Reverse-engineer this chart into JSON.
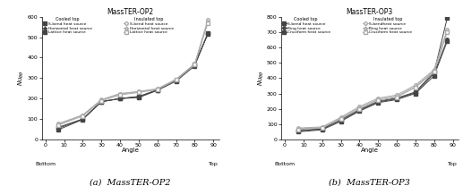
{
  "op2": {
    "title": "MassTER-OP2",
    "xlabel": "Angle",
    "ylabel": "$Nu_{\\theta\\theta}$",
    "xlim": [
      -2,
      93
    ],
    "ylim": [
      0,
      600
    ],
    "yticks": [
      0,
      100,
      200,
      300,
      400,
      500,
      600
    ],
    "xticks": [
      0,
      10,
      20,
      30,
      40,
      50,
      60,
      70,
      80,
      90
    ],
    "angles": [
      7,
      20,
      30,
      40,
      50,
      60,
      70,
      80,
      87
    ],
    "cooled": {
      "sbend": [
        60,
        100,
        185,
        200,
        205,
        240,
        285,
        360,
        520
      ],
      "horizontal": [
        55,
        100,
        185,
        200,
        210,
        243,
        290,
        365,
        515
      ],
      "lattice": [
        48,
        98,
        185,
        200,
        210,
        242,
        290,
        368,
        515
      ]
    },
    "insulated": {
      "sbend": [
        78,
        120,
        195,
        225,
        235,
        248,
        295,
        370,
        585
      ],
      "horizontal": [
        75,
        118,
        193,
        222,
        233,
        246,
        293,
        368,
        575
      ],
      "lattice": [
        70,
        115,
        188,
        218,
        230,
        244,
        291,
        365,
        570
      ]
    },
    "cooled_markers": [
      "s",
      "^",
      "s"
    ],
    "insulated_markers": [
      "o",
      "^",
      "s"
    ],
    "legend_cooled": [
      "S-bend heat source",
      "Horizontal heat source",
      "Lattice heat source"
    ],
    "legend_insulated": [
      "S-bend heat source",
      "Horizontal heat source",
      "Lattice heat source"
    ],
    "xlabel_bottom": "Bottom",
    "xlabel_top": "Top"
  },
  "op3": {
    "title": "MassTER-OP3",
    "xlabel": "Angle",
    "ylabel": "$Nu_{\\theta\\theta}$",
    "xlim": [
      -2,
      93
    ],
    "ylim": [
      0,
      800
    ],
    "yticks": [
      0,
      100,
      200,
      300,
      400,
      500,
      600,
      700,
      800
    ],
    "xticks": [
      0,
      10,
      20,
      30,
      40,
      50,
      60,
      70,
      80,
      90
    ],
    "angles": [
      7,
      20,
      30,
      40,
      50,
      60,
      70,
      80,
      87
    ],
    "cooled": {
      "sbend": [
        60,
        70,
        130,
        195,
        250,
        270,
        310,
        440,
        790
      ],
      "ring": [
        55,
        68,
        125,
        190,
        245,
        265,
        305,
        430,
        650
      ],
      "cruciform": [
        50,
        63,
        118,
        185,
        240,
        260,
        300,
        415,
        640
      ]
    },
    "insulated": {
      "sbend": [
        75,
        82,
        145,
        215,
        270,
        290,
        355,
        455,
        715
      ],
      "ring": [
        70,
        78,
        138,
        207,
        262,
        282,
        345,
        448,
        708
      ],
      "cruciform": [
        65,
        75,
        133,
        200,
        255,
        276,
        340,
        440,
        700
      ]
    },
    "cooled_markers": [
      "s",
      "o",
      "s"
    ],
    "insulated_markers": [
      "o",
      "^",
      "s"
    ],
    "legend_cooled": [
      "S-bend heat source",
      "Ring heat source",
      "Cruciform heat source"
    ],
    "legend_insulated": [
      "S-bendheat source",
      "Ring heat source",
      "Cruciform heat source"
    ],
    "xlabel_bottom": "Bottom",
    "xlabel_top": "Top"
  },
  "caption_a": "(a)  MassTER-OP2",
  "caption_b": "(b)  MassTER-OP3",
  "line_color_cooled": "#444444",
  "line_color_insulated": "#aaaaaa",
  "bg_color": "#ffffff"
}
